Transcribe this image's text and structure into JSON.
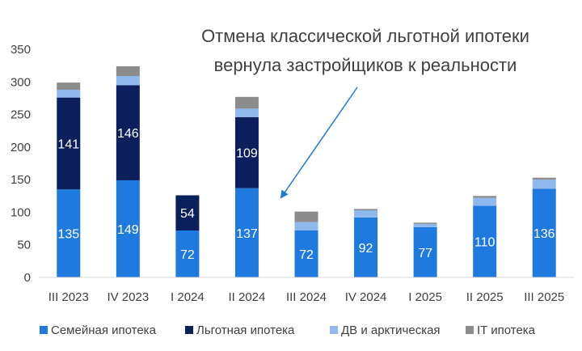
{
  "chart_data": {
    "type": "bar",
    "stacked": true,
    "categories": [
      "III 2023",
      "IV 2023",
      "I 2024",
      "II 2024",
      "III 2024",
      "IV 2024",
      "I 2025",
      "II 2025",
      "III 2025"
    ],
    "series": [
      {
        "name": "Семейная ипотека",
        "color": "#1f7ae0",
        "values": [
          135,
          149,
          72,
          137,
          72,
          92,
          77,
          110,
          136
        ],
        "labels": [
          "135",
          "149",
          "72",
          "137",
          "72",
          "92",
          "77",
          "110",
          "136"
        ]
      },
      {
        "name": "Льготная ипотека",
        "color": "#0a1f5c",
        "values": [
          141,
          146,
          54,
          109,
          0,
          0,
          0,
          0,
          0
        ],
        "labels": [
          "141",
          "146",
          "54",
          "109",
          "",
          "",
          "",
          "",
          ""
        ]
      },
      {
        "name": "ДВ и арктическая",
        "color": "#8fb8ec",
        "values": [
          12,
          14,
          0,
          13,
          13,
          11,
          5,
          12,
          14
        ],
        "labels": [
          "",
          "",
          "",
          "",
          "",
          "",
          "",
          "",
          ""
        ]
      },
      {
        "name": "IT ипотека",
        "color": "#8c8c8c",
        "values": [
          11,
          15,
          0,
          18,
          16,
          2,
          2,
          3,
          3
        ],
        "labels": [
          "",
          "",
          "",
          "",
          "",
          "",
          "",
          "",
          ""
        ]
      }
    ],
    "ylim": [
      0,
      350
    ],
    "yticks": [
      0,
      50,
      100,
      150,
      200,
      250,
      300,
      350
    ],
    "grid": false,
    "legend": "bottom",
    "annotation": {
      "lines": [
        "Отмена классической льготной ипотеки",
        "вернула застройщиков к реальности"
      ],
      "arrow_to_category": "III 2024"
    }
  }
}
